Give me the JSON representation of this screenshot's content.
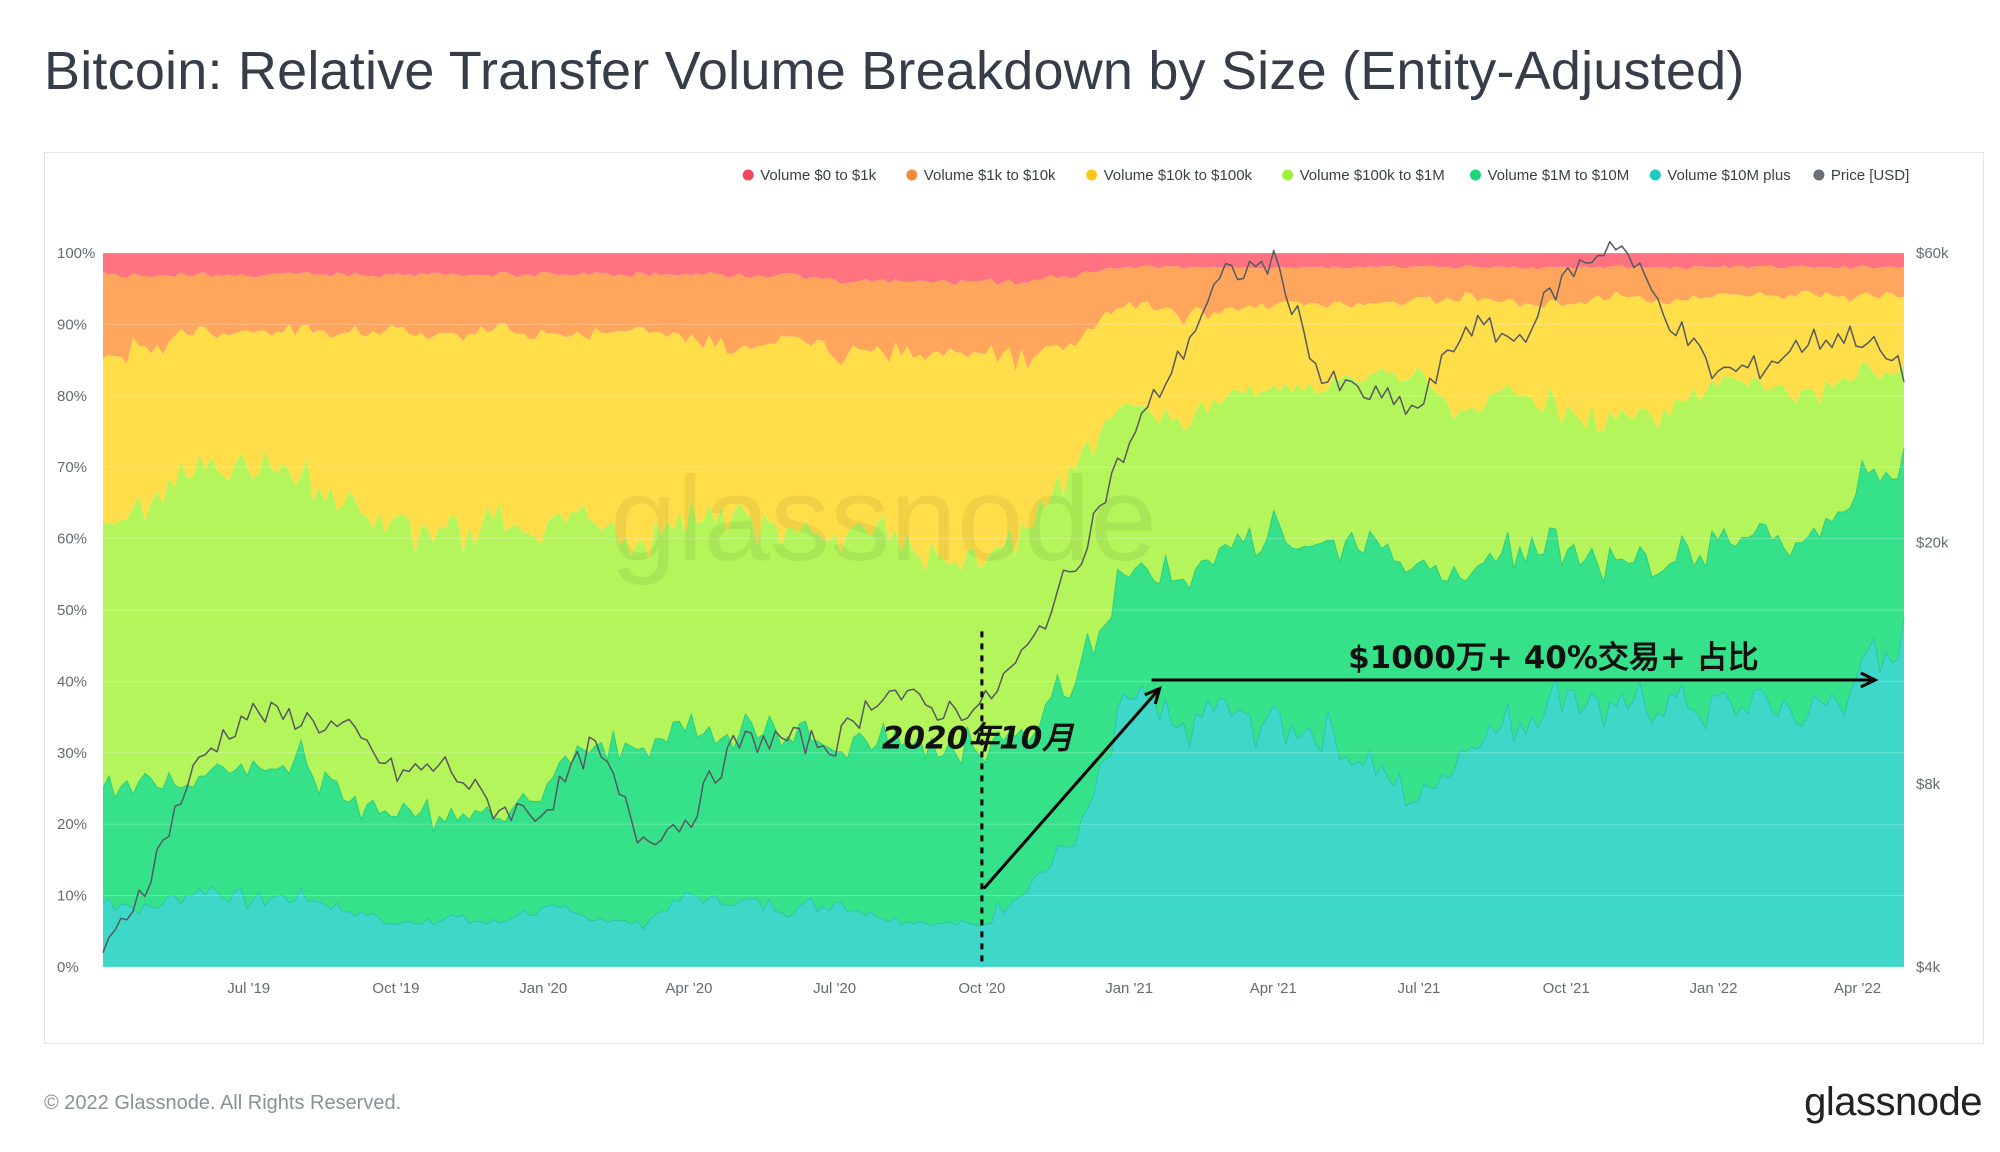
{
  "title": "Bitcoin: Relative Transfer Volume Breakdown by Size (Entity-Adjusted)",
  "footer": "© 2022 Glassnode. All Rights Reserved.",
  "brand": "glassnode",
  "watermark": "glassnode",
  "annotations": {
    "start_label": "2020年10月",
    "trend_label": "$1000万+ 40%交易+ 占比"
  },
  "chart_data": {
    "type": "area",
    "stacked": true,
    "normalized": true,
    "x_type": "time",
    "x_range": [
      "2019-04-01",
      "2022-04-30"
    ],
    "x_ticks": [
      {
        "date": "2019-07-01",
        "label": "Jul '19"
      },
      {
        "date": "2019-10-01",
        "label": "Oct '19"
      },
      {
        "date": "2020-01-01",
        "label": "Jan '20"
      },
      {
        "date": "2020-04-01",
        "label": "Apr '20"
      },
      {
        "date": "2020-07-01",
        "label": "Jul '20"
      },
      {
        "date": "2020-10-01",
        "label": "Oct '20"
      },
      {
        "date": "2021-01-01",
        "label": "Jan '21"
      },
      {
        "date": "2021-04-01",
        "label": "Apr '21"
      },
      {
        "date": "2021-07-01",
        "label": "Jul '21"
      },
      {
        "date": "2021-10-01",
        "label": "Oct '21"
      },
      {
        "date": "2022-01-01",
        "label": "Jan '22"
      },
      {
        "date": "2022-04-01",
        "label": "Apr '22"
      }
    ],
    "y_left": {
      "min": 0,
      "max": 100,
      "ticks": [
        0,
        10,
        20,
        30,
        40,
        50,
        60,
        70,
        80,
        90,
        100
      ],
      "ticks_labels": [
        "0%",
        "10%",
        "20%",
        "30%",
        "40%",
        "50%",
        "60%",
        "70%",
        "80%",
        "90%",
        "100%"
      ]
    },
    "y_right": {
      "scale": "log",
      "min": 4000,
      "max": 60000,
      "ticks": [
        4000,
        8000,
        20000,
        60000
      ],
      "ticks_labels": [
        "$4k",
        "$8k",
        "$20k",
        "$60k"
      ]
    },
    "legend_position": "top-right",
    "grid": true,
    "dates": [
      "2019-04-01",
      "2019-05-01",
      "2019-06-01",
      "2019-07-01",
      "2019-08-01",
      "2019-09-01",
      "2019-10-01",
      "2019-11-01",
      "2019-12-01",
      "2020-01-01",
      "2020-02-01",
      "2020-03-01",
      "2020-04-01",
      "2020-05-01",
      "2020-06-01",
      "2020-07-01",
      "2020-08-01",
      "2020-09-01",
      "2020-10-01",
      "2020-11-01",
      "2020-12-01",
      "2021-01-01",
      "2021-02-01",
      "2021-03-01",
      "2021-04-01",
      "2021-05-01",
      "2021-06-01",
      "2021-07-01",
      "2021-08-01",
      "2021-09-01",
      "2021-10-01",
      "2021-11-01",
      "2021-12-01",
      "2022-01-01",
      "2022-02-01",
      "2022-03-01",
      "2022-04-01",
      "2022-04-30"
    ],
    "series": [
      {
        "name": "Volume $10M plus",
        "color": "#3ed8c8",
        "values": [
          9,
          8,
          11,
          9,
          10,
          8,
          6,
          7,
          6,
          8,
          7,
          6,
          10,
          9,
          8,
          9,
          7,
          6,
          6,
          12,
          18,
          38,
          33,
          36,
          34,
          33,
          28,
          24,
          31,
          34,
          38,
          36,
          37,
          36,
          38,
          35,
          40,
          46
        ]
      },
      {
        "name": "Volume $1M to $10M",
        "color": "#35e28a",
        "values": [
          17,
          17,
          16,
          19,
          19,
          15,
          16,
          15,
          15,
          17,
          24,
          25,
          24,
          24,
          25,
          21,
          25,
          25,
          25,
          22,
          23,
          18,
          20,
          22,
          27,
          26,
          31,
          32,
          24,
          26,
          21,
          20,
          20,
          22,
          23,
          24,
          27,
          24
        ]
      },
      {
        "name": "Volume $100k to $1M",
        "color": "#b4f55c",
        "values": [
          36,
          40,
          44,
          43,
          40,
          42,
          40,
          38,
          42,
          35,
          32,
          28,
          30,
          30,
          28,
          30,
          30,
          27,
          26,
          28,
          30,
          24,
          22,
          22,
          20,
          22,
          24,
          26,
          22,
          22,
          19,
          20,
          20,
          24,
          20,
          21,
          16,
          13
        ]
      },
      {
        "name": "Volume $10k to $100k",
        "color": "#ffde4a",
        "values": [
          24,
          22,
          18,
          18,
          20,
          24,
          27,
          28,
          27,
          28,
          26,
          30,
          24,
          24,
          27,
          26,
          24,
          28,
          29,
          23,
          17,
          13,
          16,
          12,
          12,
          12,
          10,
          11,
          17,
          11,
          15,
          18,
          16,
          12,
          13,
          14,
          11,
          11
        ]
      },
      {
        "name": "Volume $1k to $10k",
        "color": "#ffa65c",
        "values": [
          11,
          10,
          8,
          8,
          8,
          8,
          8,
          9,
          7,
          9,
          8,
          8,
          9,
          10,
          9,
          10,
          10,
          10,
          10,
          11,
          9,
          5,
          7,
          6,
          5,
          5,
          5,
          5,
          4,
          5,
          5,
          4,
          5,
          4,
          4,
          4,
          4,
          4
        ]
      },
      {
        "name": "Volume $0 to $1k",
        "color": "#ff7380",
        "values": [
          3,
          3,
          3,
          3,
          3,
          3,
          3,
          3,
          3,
          3,
          3,
          3,
          3,
          3,
          3,
          4,
          4,
          4,
          4,
          4,
          3,
          2,
          2,
          2,
          2,
          2,
          2,
          2,
          2,
          2,
          2,
          2,
          2,
          2,
          2,
          2,
          2,
          2
        ]
      }
    ],
    "price": {
      "name": "Price [USD]",
      "color": "#555a5f",
      "values": [
        4100,
        5700,
        8800,
        10500,
        10300,
        9800,
        8300,
        8600,
        7300,
        7200,
        9300,
        6500,
        7000,
        9400,
        9500,
        9300,
        11500,
        10600,
        10700,
        13500,
        19000,
        29000,
        40000,
        55000,
        58000,
        37000,
        35000,
        33000,
        46000,
        43000,
        55000,
        63000,
        48000,
        38000,
        39000,
        43000,
        44000,
        38000
      ]
    }
  }
}
